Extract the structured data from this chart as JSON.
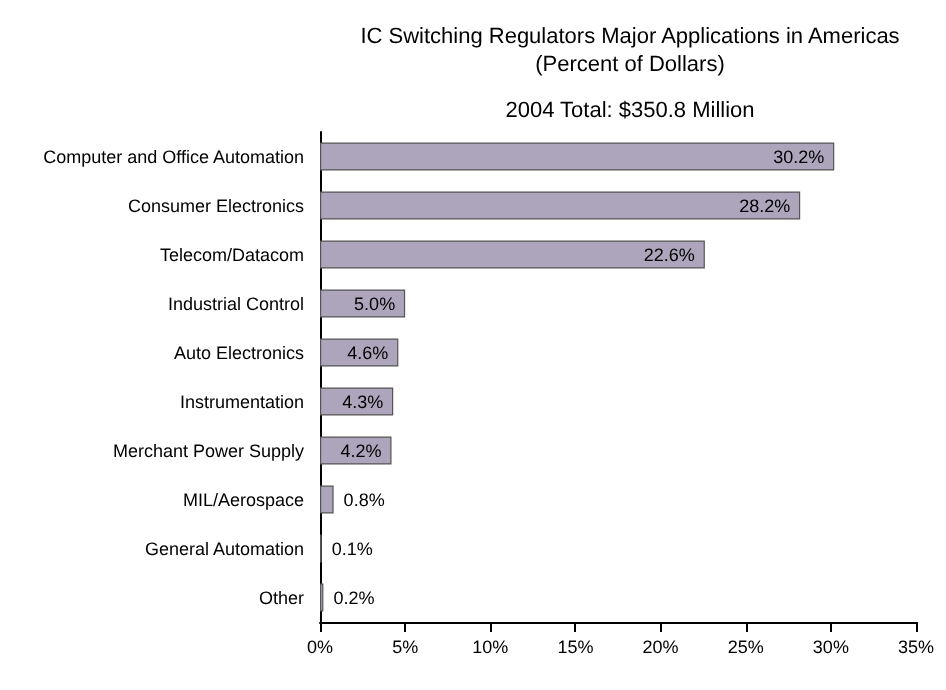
{
  "chart_data": {
    "type": "bar",
    "orientation": "horizontal",
    "title": "IC Switching Regulators Major Applications in Americas",
    "subtitle": "(Percent of Dollars)",
    "annotations": [
      "2004 Total: $350.8 Million"
    ],
    "categories": [
      "Computer and Office Automation",
      "Consumer Electronics",
      "Telecom/Datacom",
      "Industrial Control",
      "Auto Electronics",
      "Instrumentation",
      "Merchant Power Supply",
      "MIL/Aerospace",
      "General Automation",
      "Other"
    ],
    "values": [
      30.2,
      28.2,
      22.6,
      5.0,
      4.6,
      4.3,
      4.2,
      0.8,
      0.1,
      0.2
    ],
    "value_labels": [
      "30.2%",
      "28.2%",
      "22.6%",
      "5.0%",
      "4.6%",
      "4.3%",
      "4.2%",
      "0.8%",
      "0.1%",
      "0.2%"
    ],
    "color": "#aca5bc",
    "xlim": [
      0,
      35
    ],
    "xticks": [
      {
        "value": 0,
        "label": "0%"
      },
      {
        "value": 5,
        "label": "5%"
      },
      {
        "value": 10,
        "label": "10%"
      },
      {
        "value": 15,
        "label": "15%"
      },
      {
        "value": 20,
        "label": "20%"
      },
      {
        "value": 25,
        "label": "25%"
      },
      {
        "value": 30,
        "label": "30%"
      },
      {
        "value": 35,
        "label": "35%"
      }
    ],
    "grid": false
  }
}
